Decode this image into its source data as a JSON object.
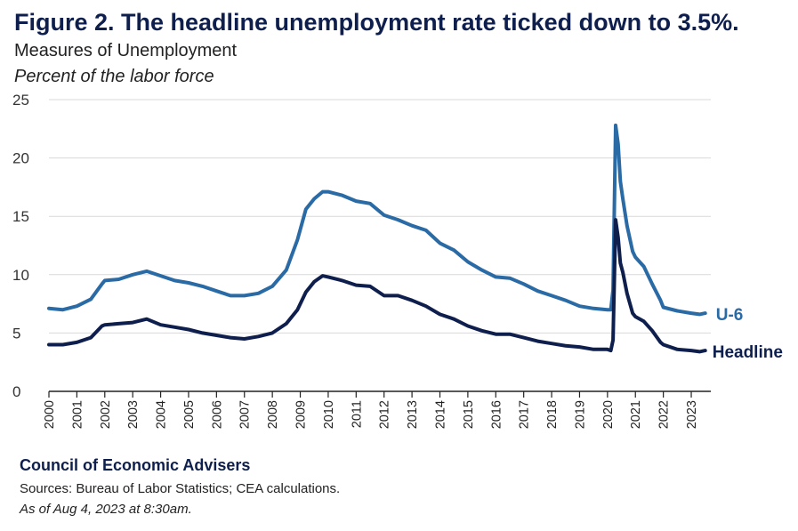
{
  "header": {
    "title": "Figure 2. The headline unemployment rate ticked down to 3.5%.",
    "subtitle": "Measures of Unemployment",
    "unit": "Percent of the labor force"
  },
  "footer": {
    "org": "Council of Economic Advisers",
    "sources": "Sources: Bureau of Labor Statistics; CEA calculations.",
    "as_of": "As of Aug 4, 2023 at 8:30am."
  },
  "chart_data": {
    "type": "line",
    "title": "Figure 2. The headline unemployment rate ticked down to 3.5%.",
    "subtitle": "Measures of Unemployment",
    "ylabel": "Percent of the labor force",
    "ylim": [
      0,
      25
    ],
    "yticks": [
      "0",
      "5",
      "10",
      "15",
      "20",
      "25"
    ],
    "xticks": [
      "2000",
      "2001",
      "2002",
      "2003",
      "2004",
      "2005",
      "2006",
      "2007",
      "2008",
      "2009",
      "2010",
      "2011",
      "2012",
      "2013",
      "2014",
      "2015",
      "2016",
      "2017",
      "2018",
      "2019",
      "2020",
      "2021",
      "2022",
      "2023"
    ],
    "grid": true,
    "legend": "direct labels at right end of lines",
    "series": [
      {
        "name": "U-6",
        "color": "#2a6aa5",
        "points": [
          [
            2000.0,
            7.1
          ],
          [
            2000.5,
            7.0
          ],
          [
            2001.0,
            7.3
          ],
          [
            2001.5,
            7.9
          ],
          [
            2001.9,
            9.2
          ],
          [
            2002.0,
            9.5
          ],
          [
            2002.5,
            9.6
          ],
          [
            2003.0,
            10.0
          ],
          [
            2003.5,
            10.3
          ],
          [
            2004.0,
            9.9
          ],
          [
            2004.5,
            9.5
          ],
          [
            2005.0,
            9.3
          ],
          [
            2005.5,
            9.0
          ],
          [
            2006.0,
            8.6
          ],
          [
            2006.5,
            8.2
          ],
          [
            2007.0,
            8.2
          ],
          [
            2007.5,
            8.4
          ],
          [
            2008.0,
            9.0
          ],
          [
            2008.5,
            10.4
          ],
          [
            2008.9,
            13.0
          ],
          [
            2009.2,
            15.6
          ],
          [
            2009.5,
            16.5
          ],
          [
            2009.8,
            17.1
          ],
          [
            2010.0,
            17.1
          ],
          [
            2010.5,
            16.8
          ],
          [
            2011.0,
            16.3
          ],
          [
            2011.5,
            16.1
          ],
          [
            2012.0,
            15.1
          ],
          [
            2012.5,
            14.7
          ],
          [
            2013.0,
            14.2
          ],
          [
            2013.5,
            13.8
          ],
          [
            2014.0,
            12.7
          ],
          [
            2014.5,
            12.1
          ],
          [
            2015.0,
            11.1
          ],
          [
            2015.5,
            10.4
          ],
          [
            2016.0,
            9.8
          ],
          [
            2016.5,
            9.7
          ],
          [
            2017.0,
            9.2
          ],
          [
            2017.5,
            8.6
          ],
          [
            2018.0,
            8.2
          ],
          [
            2018.5,
            7.8
          ],
          [
            2019.0,
            7.3
          ],
          [
            2019.5,
            7.1
          ],
          [
            2020.0,
            7.0
          ],
          [
            2020.12,
            7.0
          ],
          [
            2020.2,
            8.7
          ],
          [
            2020.29,
            22.8
          ],
          [
            2020.38,
            21.2
          ],
          [
            2020.46,
            18.0
          ],
          [
            2020.55,
            16.5
          ],
          [
            2020.7,
            14.2
          ],
          [
            2020.9,
            12.0
          ],
          [
            2021.0,
            11.5
          ],
          [
            2021.3,
            10.7
          ],
          [
            2021.6,
            9.2
          ],
          [
            2021.9,
            7.8
          ],
          [
            2022.0,
            7.2
          ],
          [
            2022.5,
            6.9
          ],
          [
            2023.0,
            6.7
          ],
          [
            2023.3,
            6.6
          ],
          [
            2023.5,
            6.7
          ]
        ]
      },
      {
        "name": "Headline",
        "color": "#0f1f4d",
        "points": [
          [
            2000.0,
            4.0
          ],
          [
            2000.5,
            4.0
          ],
          [
            2001.0,
            4.2
          ],
          [
            2001.5,
            4.6
          ],
          [
            2001.9,
            5.6
          ],
          [
            2002.0,
            5.7
          ],
          [
            2002.5,
            5.8
          ],
          [
            2003.0,
            5.9
          ],
          [
            2003.5,
            6.2
          ],
          [
            2004.0,
            5.7
          ],
          [
            2004.5,
            5.5
          ],
          [
            2005.0,
            5.3
          ],
          [
            2005.5,
            5.0
          ],
          [
            2006.0,
            4.8
          ],
          [
            2006.5,
            4.6
          ],
          [
            2007.0,
            4.5
          ],
          [
            2007.5,
            4.7
          ],
          [
            2008.0,
            5.0
          ],
          [
            2008.5,
            5.8
          ],
          [
            2008.9,
            7.0
          ],
          [
            2009.2,
            8.5
          ],
          [
            2009.5,
            9.4
          ],
          [
            2009.8,
            9.9
          ],
          [
            2010.0,
            9.8
          ],
          [
            2010.5,
            9.5
          ],
          [
            2011.0,
            9.1
          ],
          [
            2011.5,
            9.0
          ],
          [
            2012.0,
            8.2
          ],
          [
            2012.5,
            8.2
          ],
          [
            2013.0,
            7.8
          ],
          [
            2013.5,
            7.3
          ],
          [
            2014.0,
            6.6
          ],
          [
            2014.5,
            6.2
          ],
          [
            2015.0,
            5.6
          ],
          [
            2015.5,
            5.2
          ],
          [
            2016.0,
            4.9
          ],
          [
            2016.5,
            4.9
          ],
          [
            2017.0,
            4.6
          ],
          [
            2017.5,
            4.3
          ],
          [
            2018.0,
            4.1
          ],
          [
            2018.5,
            3.9
          ],
          [
            2019.0,
            3.8
          ],
          [
            2019.5,
            3.6
          ],
          [
            2020.0,
            3.6
          ],
          [
            2020.12,
            3.5
          ],
          [
            2020.2,
            4.4
          ],
          [
            2020.29,
            14.7
          ],
          [
            2020.38,
            13.2
          ],
          [
            2020.46,
            11.0
          ],
          [
            2020.55,
            10.2
          ],
          [
            2020.7,
            8.4
          ],
          [
            2020.9,
            6.7
          ],
          [
            2021.0,
            6.4
          ],
          [
            2021.3,
            6.0
          ],
          [
            2021.6,
            5.2
          ],
          [
            2021.9,
            4.2
          ],
          [
            2022.0,
            4.0
          ],
          [
            2022.5,
            3.6
          ],
          [
            2023.0,
            3.5
          ],
          [
            2023.3,
            3.4
          ],
          [
            2023.5,
            3.5
          ]
        ]
      }
    ]
  }
}
